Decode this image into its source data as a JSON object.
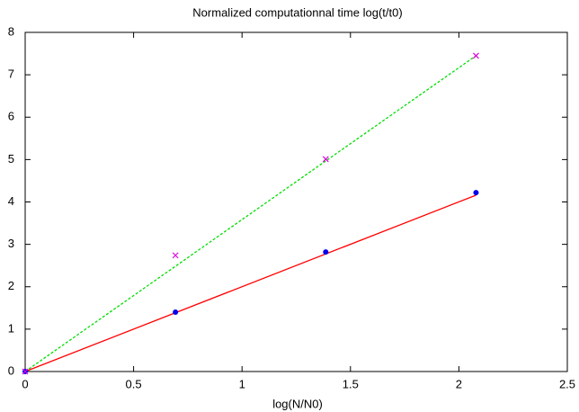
{
  "chart_data": {
    "type": "scatter",
    "title": "Normalized computationnal time log(t/t0)",
    "x_label": "log(N/N0)",
    "xlim": [
      0,
      2.5
    ],
    "xticks": [
      0,
      0.5,
      1,
      1.5,
      2,
      2.5
    ],
    "ylim": [
      0,
      8
    ],
    "yticks": [
      0,
      1,
      2,
      3,
      4,
      5,
      6,
      7,
      8
    ],
    "grid": false,
    "series": [
      {
        "color": "#ff0000",
        "marker": "none",
        "line": "solid",
        "x": [
          0,
          2.079
        ],
        "values": [
          0,
          4.16
        ]
      },
      {
        "color": "#00dd00",
        "marker": "none",
        "line": "dashed",
        "x": [
          0,
          2.079
        ],
        "values": [
          0,
          7.45
        ]
      },
      {
        "color": "#0000ee",
        "marker": "dot",
        "line": "none",
        "x": [
          0,
          0.693,
          1.386,
          2.079
        ],
        "values": [
          0,
          1.4,
          2.82,
          4.22
        ]
      },
      {
        "color": "#dd00dd",
        "marker": "cross",
        "line": "none",
        "x": [
          0,
          0.693,
          1.386,
          2.079
        ],
        "values": [
          0,
          2.74,
          5.01,
          7.45
        ]
      }
    ]
  }
}
